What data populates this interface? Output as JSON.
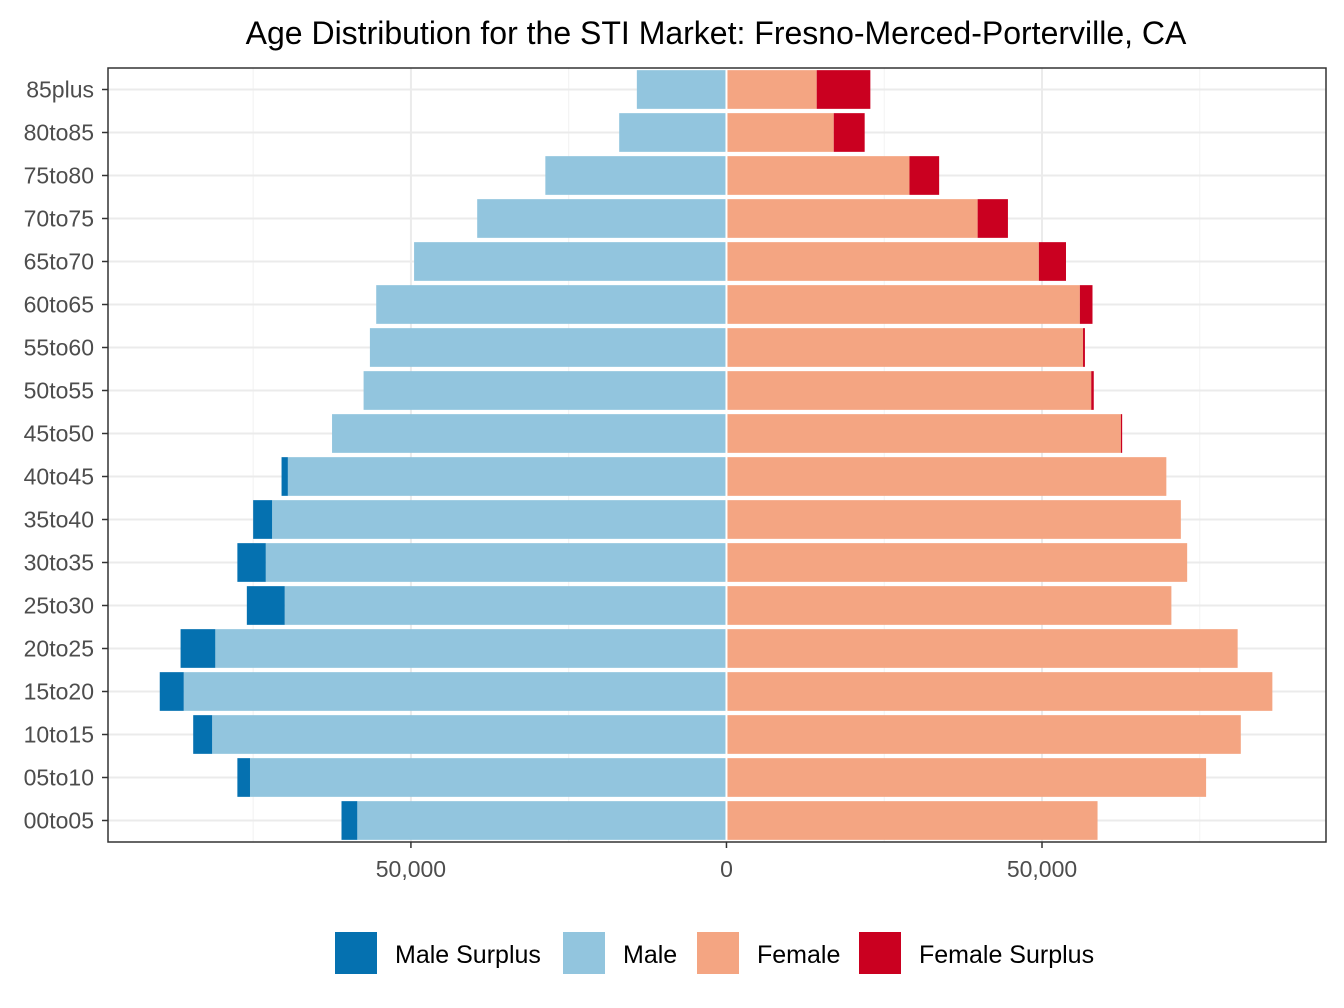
{
  "chart_data": {
    "type": "bar",
    "orientation": "horizontal-diverging",
    "title": "Age Distribution for the STI Market: Fresno-Merced-Porterville, CA",
    "xlabel": "",
    "ylabel": "",
    "xlim": [
      -98000,
      95000
    ],
    "x_ticks": [
      -50000,
      0,
      50000
    ],
    "x_tick_labels": [
      "50,000",
      "0",
      "50,000"
    ],
    "grid": true,
    "legend_position": "bottom",
    "categories": [
      "00to05",
      "05to10",
      "10to15",
      "15to20",
      "20to25",
      "25to30",
      "30to35",
      "35to40",
      "40to45",
      "45to50",
      "50to55",
      "55to60",
      "60to65",
      "65to70",
      "70to75",
      "75to80",
      "80to85",
      "85plus"
    ],
    "series": [
      {
        "name": "Male Surplus",
        "color": "#0571b0",
        "side": "left",
        "values": [
          2500,
          2000,
          3000,
          3800,
          5500,
          6000,
          4500,
          3000,
          1000,
          0,
          0,
          0,
          0,
          0,
          0,
          0,
          0,
          0
        ]
      },
      {
        "name": "Male",
        "color": "#92c5de",
        "side": "left",
        "values": [
          58500,
          75500,
          81500,
          86000,
          81000,
          70000,
          73000,
          72000,
          69500,
          62500,
          57500,
          56500,
          55500,
          49500,
          39500,
          28700,
          17000,
          14200
        ]
      },
      {
        "name": "Female",
        "color": "#f4a582",
        "side": "right",
        "values": [
          58800,
          76000,
          81500,
          86500,
          81000,
          70500,
          73000,
          72000,
          69700,
          62500,
          57800,
          56500,
          56000,
          49500,
          39800,
          29000,
          17000,
          14300
        ]
      },
      {
        "name": "Female Surplus",
        "color": "#ca0020",
        "side": "right",
        "values": [
          0,
          0,
          0,
          0,
          0,
          0,
          0,
          0,
          0,
          200,
          400,
          300,
          2000,
          4300,
          4800,
          4700,
          4900,
          8500
        ]
      }
    ]
  }
}
